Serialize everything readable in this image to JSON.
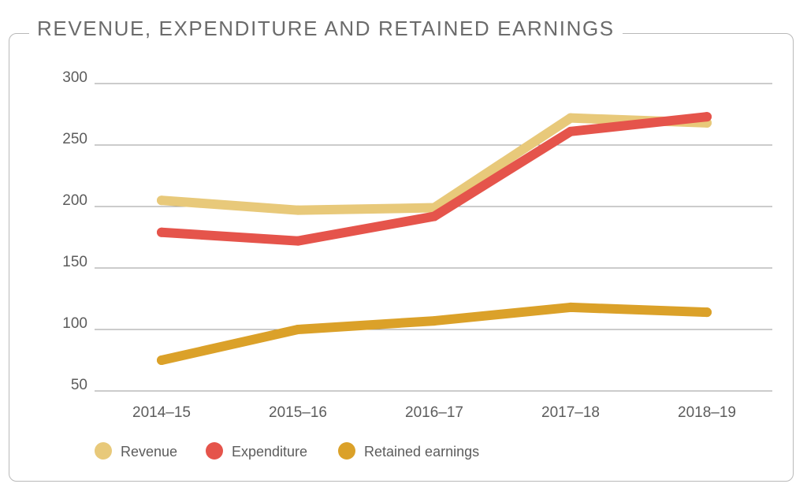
{
  "chart_data": {
    "type": "line",
    "title": "REVENUE, EXPENDITURE AND RETAINED EARNINGS",
    "xlabel": "",
    "ylabel": "",
    "categories": [
      "2014–15",
      "2015–16",
      "2016–17",
      "2017–18",
      "2018–19"
    ],
    "yticks": [
      50,
      100,
      150,
      200,
      250,
      300
    ],
    "ylim": [
      50,
      300
    ],
    "grid": true,
    "legend_position": "bottom-left",
    "series": [
      {
        "name": "Revenue",
        "color": "#e8c97a",
        "values": [
          205,
          197,
          199,
          272,
          268
        ]
      },
      {
        "name": "Expenditure",
        "color": "#e5544b",
        "values": [
          179,
          172,
          192,
          261,
          273
        ]
      },
      {
        "name": "Retained earnings",
        "color": "#dba129",
        "values": [
          75,
          100,
          107,
          118,
          114
        ]
      }
    ]
  }
}
